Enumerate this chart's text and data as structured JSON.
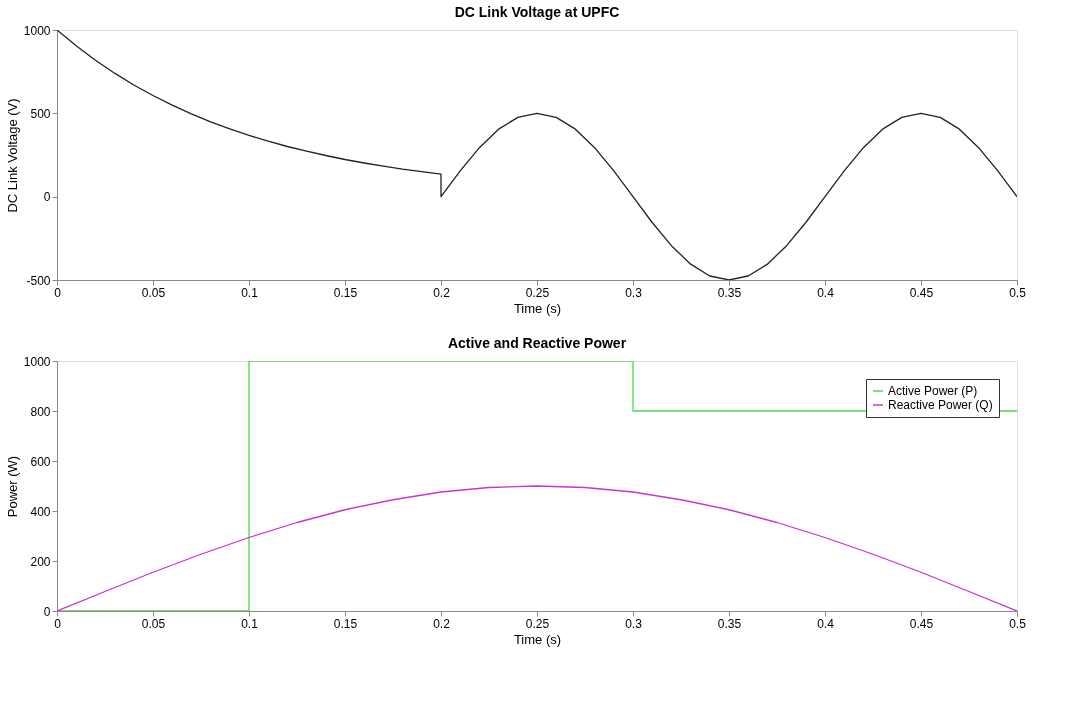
{
  "chart_data": [
    {
      "type": "line",
      "title": "DC Link Voltage at UPFC",
      "xlabel": "Time (s)",
      "ylabel": "DC Link Voltage (V)",
      "xlim": [
        0,
        0.5
      ],
      "xticks": [
        0,
        0.05,
        0.1,
        0.15,
        0.2,
        0.25,
        0.3,
        0.35,
        0.4,
        0.45,
        0.5
      ],
      "ylim": [
        -500,
        1000
      ],
      "yticks": [
        -500,
        0,
        500,
        1000
      ],
      "grid": false,
      "legend": false,
      "marker": "none",
      "line_style": "solid",
      "series": [
        {
          "color": "#222222",
          "x": [
            0,
            0.01,
            0.02,
            0.03,
            0.04,
            0.05,
            0.06,
            0.07,
            0.08,
            0.09,
            0.1,
            0.11,
            0.12,
            0.13,
            0.14,
            0.15,
            0.16,
            0.17,
            0.18,
            0.19,
            0.2,
            0.2,
            0.21,
            0.22,
            0.23,
            0.24,
            0.25,
            0.26,
            0.27,
            0.28,
            0.29,
            0.3,
            0.31,
            0.32,
            0.33,
            0.34,
            0.35,
            0.36,
            0.37,
            0.38,
            0.39,
            0.4,
            0.41,
            0.42,
            0.43,
            0.44,
            0.45,
            0.46,
            0.47,
            0.48,
            0.49,
            0.5
          ],
          "values": [
            1000,
            905,
            819,
            741,
            670,
            607,
            549,
            497,
            449,
            407,
            368,
            333,
            301,
            273,
            247,
            223,
            202,
            183,
            165,
            150,
            135,
            0,
            155,
            294,
            405,
            476,
            500,
            476,
            405,
            294,
            155,
            0,
            -155,
            -294,
            -405,
            -476,
            -500,
            -476,
            -405,
            -294,
            -155,
            0,
            155,
            294,
            405,
            476,
            500,
            476,
            405,
            294,
            155,
            0
          ]
        }
      ]
    },
    {
      "type": "line",
      "title": "Active and Reactive Power",
      "xlabel": "Time (s)",
      "ylabel": "Power (W)",
      "xlim": [
        0,
        0.5
      ],
      "xticks": [
        0,
        0.05,
        0.1,
        0.15,
        0.2,
        0.25,
        0.3,
        0.35,
        0.4,
        0.45,
        0.5
      ],
      "ylim": [
        0,
        1000
      ],
      "yticks": [
        0,
        200,
        400,
        600,
        800,
        1000
      ],
      "grid": false,
      "legend": "top right",
      "marker": "none",
      "line_style": "solid",
      "series": [
        {
          "name": "Active Power (P)",
          "type": "step",
          "color": "#4cd94c",
          "x": [
            0,
            0.1,
            0.3,
            0.5
          ],
          "values": [
            0,
            1000,
            800,
            800
          ]
        },
        {
          "name": "Reactive Power (Q)",
          "type": "line",
          "color": "#cc33cc",
          "x": [
            0,
            0.025,
            0.05,
            0.075,
            0.1,
            0.125,
            0.15,
            0.175,
            0.2,
            0.225,
            0.25,
            0.275,
            0.3,
            0.325,
            0.35,
            0.375,
            0.4,
            0.425,
            0.45,
            0.475,
            0.5
          ],
          "values": [
            0,
            78,
            155,
            227,
            294,
            354,
            405,
            445,
            476,
            494,
            500,
            494,
            476,
            445,
            405,
            354,
            294,
            227,
            155,
            78,
            0
          ]
        }
      ]
    }
  ]
}
